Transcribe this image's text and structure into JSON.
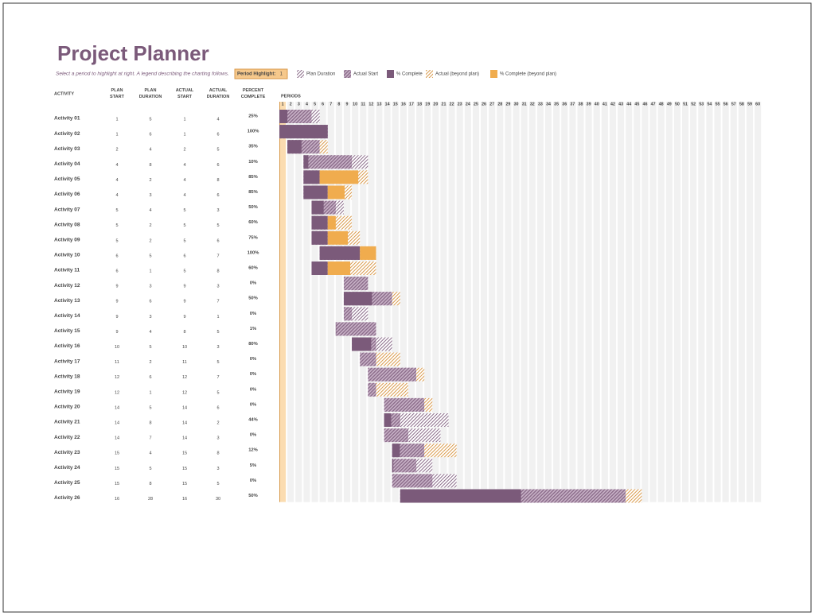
{
  "header": {
    "title": "Project Planner",
    "subtitle": "Select a period to highlight at right.  A legend describing the charting follows.",
    "period_highlight": {
      "label": "Period Highlight:",
      "value": 1
    }
  },
  "legend": [
    "Plan Duration",
    "Actual Start",
    "% Complete",
    "Actual (beyond plan)",
    "% Complete (beyond plan)"
  ],
  "table": {
    "columns": [
      "ACTIVITY",
      "PLAN START",
      "PLAN DURATION",
      "ACTUAL START",
      "ACTUAL DURATION",
      "PERCENT COMPLETE"
    ],
    "rows": [
      {
        "activity": "Activity 01",
        "plan_start": 1,
        "plan_duration": 5,
        "actual_start": 1,
        "actual_duration": 4,
        "percent": {
          "value": 25,
          "label": "25%"
        }
      },
      {
        "activity": "Activity 02",
        "plan_start": 1,
        "plan_duration": 6,
        "actual_start": 1,
        "actual_duration": 6,
        "percent": {
          "value": 100,
          "label": "100%"
        }
      },
      {
        "activity": "Activity 03",
        "plan_start": 2,
        "plan_duration": 4,
        "actual_start": 2,
        "actual_duration": 5,
        "percent": {
          "value": 35,
          "label": "35%"
        }
      },
      {
        "activity": "Activity 04",
        "plan_start": 4,
        "plan_duration": 8,
        "actual_start": 4,
        "actual_duration": 6,
        "percent": {
          "value": 10,
          "label": "10%"
        }
      },
      {
        "activity": "Activity 05",
        "plan_start": 4,
        "plan_duration": 2,
        "actual_start": 4,
        "actual_duration": 8,
        "percent": {
          "value": 85,
          "label": "85%"
        }
      },
      {
        "activity": "Activity 06",
        "plan_start": 4,
        "plan_duration": 3,
        "actual_start": 4,
        "actual_duration": 6,
        "percent": {
          "value": 85,
          "label": "85%"
        }
      },
      {
        "activity": "Activity 07",
        "plan_start": 5,
        "plan_duration": 4,
        "actual_start": 5,
        "actual_duration": 3,
        "percent": {
          "value": 50,
          "label": "50%"
        }
      },
      {
        "activity": "Activity 08",
        "plan_start": 5,
        "plan_duration": 2,
        "actual_start": 5,
        "actual_duration": 5,
        "percent": {
          "value": 60,
          "label": "60%"
        }
      },
      {
        "activity": "Activity 09",
        "plan_start": 5,
        "plan_duration": 2,
        "actual_start": 5,
        "actual_duration": 6,
        "percent": {
          "value": 75,
          "label": "75%"
        }
      },
      {
        "activity": "Activity 10",
        "plan_start": 6,
        "plan_duration": 5,
        "actual_start": 6,
        "actual_duration": 7,
        "percent": {
          "value": 100,
          "label": "100%"
        }
      },
      {
        "activity": "Activity 11",
        "plan_start": 6,
        "plan_duration": 1,
        "actual_start": 5,
        "actual_duration": 8,
        "percent": {
          "value": 60,
          "label": "60%"
        }
      },
      {
        "activity": "Activity 12",
        "plan_start": 9,
        "plan_duration": 3,
        "actual_start": 9,
        "actual_duration": 3,
        "percent": {
          "value": 0,
          "label": "0%"
        }
      },
      {
        "activity": "Activity 13",
        "plan_start": 9,
        "plan_duration": 6,
        "actual_start": 9,
        "actual_duration": 7,
        "percent": {
          "value": 50,
          "label": "50%"
        }
      },
      {
        "activity": "Activity 14",
        "plan_start": 9,
        "plan_duration": 3,
        "actual_start": 9,
        "actual_duration": 1,
        "percent": {
          "value": 0,
          "label": "0%"
        }
      },
      {
        "activity": "Activity 15",
        "plan_start": 9,
        "plan_duration": 4,
        "actual_start": 8,
        "actual_duration": 5,
        "percent": {
          "value": 1,
          "label": "1%"
        }
      },
      {
        "activity": "Activity 16",
        "plan_start": 10,
        "plan_duration": 5,
        "actual_start": 10,
        "actual_duration": 3,
        "percent": {
          "value": 80,
          "label": "80%"
        }
      },
      {
        "activity": "Activity 17",
        "plan_start": 11,
        "plan_duration": 2,
        "actual_start": 11,
        "actual_duration": 5,
        "percent": {
          "value": 0,
          "label": "0%"
        }
      },
      {
        "activity": "Activity 18",
        "plan_start": 12,
        "plan_duration": 6,
        "actual_start": 12,
        "actual_duration": 7,
        "percent": {
          "value": 0,
          "label": "0%"
        }
      },
      {
        "activity": "Activity 19",
        "plan_start": 12,
        "plan_duration": 1,
        "actual_start": 12,
        "actual_duration": 5,
        "percent": {
          "value": 0,
          "label": "0%"
        }
      },
      {
        "activity": "Activity 20",
        "plan_start": 14,
        "plan_duration": 5,
        "actual_start": 14,
        "actual_duration": 6,
        "percent": {
          "value": 0,
          "label": "0%"
        }
      },
      {
        "activity": "Activity 21",
        "plan_start": 14,
        "plan_duration": 8,
        "actual_start": 14,
        "actual_duration": 2,
        "percent": {
          "value": 44,
          "label": "44%"
        }
      },
      {
        "activity": "Activity 22",
        "plan_start": 14,
        "plan_duration": 7,
        "actual_start": 14,
        "actual_duration": 3,
        "percent": {
          "value": 0,
          "label": "0%"
        }
      },
      {
        "activity": "Activity 23",
        "plan_start": 15,
        "plan_duration": 4,
        "actual_start": 15,
        "actual_duration": 8,
        "percent": {
          "value": 12,
          "label": "12%"
        }
      },
      {
        "activity": "Activity 24",
        "plan_start": 15,
        "plan_duration": 5,
        "actual_start": 15,
        "actual_duration": 3,
        "percent": {
          "value": 5,
          "label": "5%"
        }
      },
      {
        "activity": "Activity 25",
        "plan_start": 15,
        "plan_duration": 8,
        "actual_start": 15,
        "actual_duration": 5,
        "percent": {
          "value": 0,
          "label": "0%"
        }
      },
      {
        "activity": "Activity 26",
        "plan_start": 16,
        "plan_duration": 28,
        "actual_start": 16,
        "actual_duration": 30,
        "percent": {
          "value": 50,
          "label": "50%"
        }
      }
    ]
  },
  "gantt": {
    "label": "PERIODS",
    "periods": [
      1,
      2,
      3,
      4,
      5,
      6,
      7,
      8,
      9,
      10,
      11,
      12,
      13,
      14,
      15,
      16,
      17,
      18,
      19,
      20,
      21,
      22,
      23,
      24,
      25,
      26,
      27,
      28,
      29,
      30,
      31,
      32,
      33,
      34,
      35,
      36,
      37,
      38,
      39,
      40,
      41,
      42,
      43,
      44,
      45,
      46,
      47,
      48,
      49,
      50,
      51,
      52,
      53,
      54,
      55,
      56,
      57,
      58,
      59,
      60
    ]
  }
}
